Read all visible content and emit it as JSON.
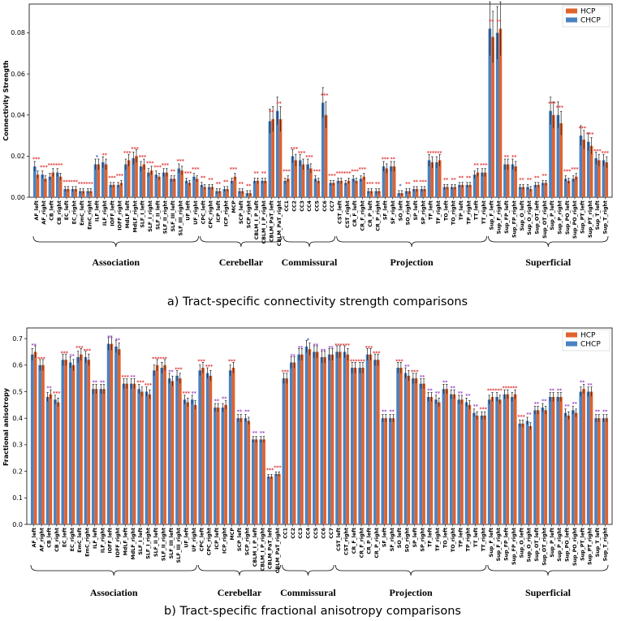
{
  "colors": {
    "hcp": "#e0622d",
    "chcp": "#4a82c0",
    "sig_red": "#e03030",
    "sig_purple": "#9a3ec8",
    "sig_green": "#2a9a2a",
    "sig_blue": "#3050c0"
  },
  "chart_data": [
    {
      "type": "bar",
      "id": "a",
      "title": "a) Tract-specific connectivity strength comparisons",
      "ylabel": "Connectivity Strength",
      "xlabel": "",
      "ylim": [
        0,
        0.094
      ],
      "yticks": [
        "0.00",
        "0.02",
        "0.04",
        "0.06",
        "0.08"
      ],
      "ytick_values": [
        0,
        0.02,
        0.04,
        0.06,
        0.08
      ],
      "legend": {
        "position": "top-right",
        "entries": [
          "HCP",
          "CHCP"
        ]
      },
      "categories": [
        "AF_left",
        "AF_right",
        "CB_left",
        "CB_right",
        "EC_left",
        "EC_right",
        "EmC_left",
        "EmC_right",
        "ILF_left",
        "ILF_right",
        "IOFF_left",
        "IOFF_right",
        "MdLF_left",
        "MdLF_right",
        "SLF_I_left",
        "SLF_I_right",
        "SLF_II_left",
        "SLF_II_right",
        "SLF_III_left",
        "SLF_III_right",
        "UF_left",
        "UF_right",
        "CPC_left",
        "CPC_right",
        "ICP_left",
        "ICP_right",
        "MCP",
        "SCP_left",
        "SCP_right",
        "CBLM_I_P_left",
        "CBLM_I_P_right",
        "CBLM_PaT_left",
        "CBLM_PaT_right",
        "CC1",
        "CC2",
        "CC3",
        "CC4",
        "CC5",
        "CC6",
        "CC7",
        "CST_left",
        "CST_right",
        "CR_F_left",
        "CR_F_right",
        "CR_P_left",
        "CR_P_right",
        "SF_left",
        "SF_right",
        "SO_left",
        "SO_right",
        "SP_left",
        "SP_right",
        "TF_left",
        "TF_right",
        "TO_left",
        "TO_right",
        "TP_left",
        "TP_right",
        "TT_left",
        "TT_right",
        "Sup_F_left",
        "Sup_F_right",
        "Sup_FP_left",
        "Sup_FP_right",
        "Sup_O_left",
        "Sup_O_right",
        "Sup_OT_left",
        "Sup_OT_right",
        "Sup_P_left",
        "Sup_P_right",
        "Sup_PO_left",
        "Sup_PO_right",
        "Sup_PT_left",
        "Sup_PT_right",
        "Sup_T_left",
        "Sup_T_right"
      ],
      "series": [
        {
          "name": "CHCP",
          "values": [
            0.015,
            0.011,
            0.01,
            0.012,
            0.004,
            0.004,
            0.003,
            0.003,
            0.016,
            0.017,
            0.006,
            0.006,
            0.016,
            0.019,
            0.015,
            0.012,
            0.011,
            0.012,
            0.009,
            0.014,
            0.008,
            0.01,
            0.006,
            0.005,
            0.003,
            0.004,
            0.008,
            0.003,
            0.002,
            0.008,
            0.008,
            0.037,
            0.042,
            0.008,
            0.02,
            0.018,
            0.016,
            0.009,
            0.046,
            0.007,
            0.008,
            0.007,
            0.009,
            0.009,
            0.003,
            0.003,
            0.015,
            0.015,
            0.002,
            0.003,
            0.004,
            0.004,
            0.018,
            0.017,
            0.005,
            0.005,
            0.006,
            0.006,
            0.011,
            0.012,
            0.082,
            0.08,
            0.016,
            0.016,
            0.005,
            0.005,
            0.006,
            0.007,
            0.042,
            0.04,
            0.009,
            0.009,
            0.03,
            0.027,
            0.019,
            0.018
          ]
        },
        {
          "name": "HCP",
          "values": [
            0.011,
            0.009,
            0.012,
            0.01,
            0.004,
            0.004,
            0.003,
            0.003,
            0.016,
            0.016,
            0.006,
            0.007,
            0.018,
            0.02,
            0.016,
            0.013,
            0.01,
            0.012,
            0.009,
            0.013,
            0.007,
            0.009,
            0.005,
            0.005,
            0.003,
            0.004,
            0.01,
            0.003,
            0.002,
            0.008,
            0.008,
            0.038,
            0.038,
            0.009,
            0.018,
            0.016,
            0.014,
            0.008,
            0.04,
            0.007,
            0.008,
            0.008,
            0.008,
            0.01,
            0.003,
            0.003,
            0.014,
            0.015,
            0.002,
            0.003,
            0.004,
            0.004,
            0.017,
            0.018,
            0.005,
            0.005,
            0.006,
            0.006,
            0.012,
            0.012,
            0.078,
            0.082,
            0.016,
            0.015,
            0.005,
            0.004,
            0.006,
            0.007,
            0.04,
            0.036,
            0.008,
            0.01,
            0.028,
            0.025,
            0.018,
            0.017
          ]
        }
      ],
      "significance": [
        "***",
        "***",
        "***",
        "***",
        "***",
        "***",
        "***",
        "***",
        "*",
        "**",
        "***",
        "***",
        "***",
        "***",
        "***",
        "***",
        "***",
        "***",
        "**",
        "***",
        "***",
        "***",
        "**",
        "**",
        "**",
        "**",
        "***",
        "**",
        "**",
        "**",
        "**",
        "**",
        "**",
        "***",
        "***",
        "***",
        "***",
        "***",
        "***",
        "***",
        "***",
        "***",
        "***",
        "***",
        "***",
        "**",
        "***",
        "**",
        "*",
        "**",
        "**",
        "***",
        "***",
        "***",
        "**",
        "**",
        "**",
        "**",
        "**",
        "***",
        "**",
        "**",
        "**",
        "**",
        "**",
        "**",
        "**",
        "**",
        "***",
        "***",
        "***",
        "***",
        "***",
        "***",
        "***",
        "***"
      ],
      "groups": [
        "Association",
        "Cerebellar",
        "Commissural",
        "Projection",
        "Superficial"
      ]
    },
    {
      "type": "bar",
      "id": "b",
      "title": "b) Tract-specific fractional anisotropy comparisons",
      "ylabel": "Fractional anisotropy",
      "xlabel": "",
      "ylim": [
        0,
        0.74
      ],
      "yticks": [
        "0.0",
        "0.1",
        "0.2",
        "0.3",
        "0.4",
        "0.5",
        "0.6",
        "0.7"
      ],
      "ytick_values": [
        0,
        0.1,
        0.2,
        0.3,
        0.4,
        0.5,
        0.6,
        0.7
      ],
      "legend": {
        "position": "top-right",
        "entries": [
          "HCP",
          "CHCP"
        ]
      },
      "categories": [
        "AF_left",
        "AF_right",
        "CB_left",
        "CB_right",
        "EC_left",
        "EC_right",
        "EmC_left",
        "EmC_right",
        "ILF_left",
        "ILF_right",
        "IOFF_left",
        "IOFF_right",
        "MdLF_left",
        "MdLF_right",
        "SLF_I_left",
        "SLF_I_right",
        "SLF_II_left",
        "SLF_II_right",
        "SLF_III_left",
        "SLF_III_right",
        "UF_left",
        "UF_right",
        "CPC_left",
        "CPC_right",
        "ICP_left",
        "ICP_right",
        "MCP",
        "SCP_left",
        "SCP_right",
        "CBLM_I_P_left",
        "CBLM_I_P_right",
        "CBLM_PaT_left",
        "CBLM_PaT_right",
        "CC1",
        "CC2",
        "CC3",
        "CC4",
        "CC5",
        "CC6",
        "CC7",
        "CST_left",
        "CST_right",
        "CR_F_left",
        "CR_F_right",
        "CR_P_left",
        "CR_P_right",
        "SF_left",
        "SF_right",
        "SO_left",
        "SO_right",
        "SP_left",
        "SP_right",
        "TF_left",
        "TF_right",
        "TO_left",
        "TO_right",
        "TP_left",
        "TP_right",
        "TT_left",
        "TT_right",
        "Sup_F_left",
        "Sup_F_right",
        "Sup_FP_left",
        "Sup_FP_right",
        "Sup_O_left",
        "Sup_O_right",
        "Sup_OT_left",
        "Sup_OT_right",
        "Sup_P_left",
        "Sup_P_right",
        "Sup_PO_left",
        "Sup_PO_right",
        "Sup_PT_left",
        "Sup_PT_right",
        "Sup_T_left",
        "Sup_T_right"
      ],
      "series": [
        {
          "name": "CHCP",
          "values": [
            0.64,
            0.6,
            0.48,
            0.47,
            0.62,
            0.61,
            0.63,
            0.63,
            0.51,
            0.51,
            0.68,
            0.67,
            0.53,
            0.53,
            0.51,
            0.5,
            0.58,
            0.59,
            0.55,
            0.56,
            0.47,
            0.47,
            0.58,
            0.57,
            0.44,
            0.44,
            0.58,
            0.4,
            0.4,
            0.32,
            0.32,
            0.18,
            0.19,
            0.55,
            0.61,
            0.64,
            0.67,
            0.65,
            0.63,
            0.64,
            0.65,
            0.65,
            0.59,
            0.59,
            0.64,
            0.62,
            0.4,
            0.4,
            0.59,
            0.57,
            0.55,
            0.53,
            0.48,
            0.47,
            0.51,
            0.49,
            0.47,
            0.46,
            0.42,
            0.41,
            0.47,
            0.48,
            0.49,
            0.48,
            0.38,
            0.39,
            0.43,
            0.44,
            0.48,
            0.48,
            0.42,
            0.43,
            0.5,
            0.5,
            0.4,
            0.4
          ]
        },
        {
          "name": "HCP",
          "values": [
            0.65,
            0.6,
            0.49,
            0.46,
            0.62,
            0.6,
            0.64,
            0.62,
            0.51,
            0.51,
            0.68,
            0.66,
            0.53,
            0.53,
            0.5,
            0.49,
            0.6,
            0.6,
            0.54,
            0.55,
            0.46,
            0.45,
            0.59,
            0.56,
            0.44,
            0.45,
            0.59,
            0.4,
            0.39,
            0.32,
            0.32,
            0.18,
            0.19,
            0.55,
            0.61,
            0.64,
            0.66,
            0.65,
            0.63,
            0.64,
            0.65,
            0.64,
            0.59,
            0.59,
            0.64,
            0.62,
            0.4,
            0.4,
            0.59,
            0.56,
            0.55,
            0.53,
            0.48,
            0.46,
            0.51,
            0.49,
            0.47,
            0.45,
            0.41,
            0.41,
            0.48,
            0.47,
            0.49,
            0.49,
            0.38,
            0.37,
            0.43,
            0.43,
            0.48,
            0.48,
            0.41,
            0.42,
            0.51,
            0.5,
            0.4,
            0.4
          ]
        }
      ],
      "significance": [
        "**",
        "***",
        "**",
        "***",
        "***",
        "**",
        "***",
        "***",
        "**",
        "**",
        "**",
        "**",
        "***",
        "**",
        "***",
        "***",
        "***",
        "***",
        "**",
        "***",
        "***",
        "**",
        "***",
        "***",
        "**",
        "**",
        "***",
        "**",
        "**",
        "**",
        "**",
        "***",
        "***",
        "***",
        "**",
        "**",
        "*",
        "**",
        "**",
        "**",
        "***",
        "***",
        "***",
        "***",
        "***",
        "***",
        "**",
        "**",
        "***",
        "**",
        "***",
        "**",
        "**",
        "**",
        "**",
        "**",
        "**",
        "**",
        "**",
        "***",
        "***",
        "***",
        "***",
        "***",
        "***",
        "**",
        "**",
        "**",
        "**",
        "**",
        "**",
        "**",
        "**",
        "**",
        "**",
        "**"
      ],
      "groups": [
        "Association",
        "Cerebellar",
        "Commissural",
        "Projection",
        "Superficial"
      ]
    }
  ]
}
